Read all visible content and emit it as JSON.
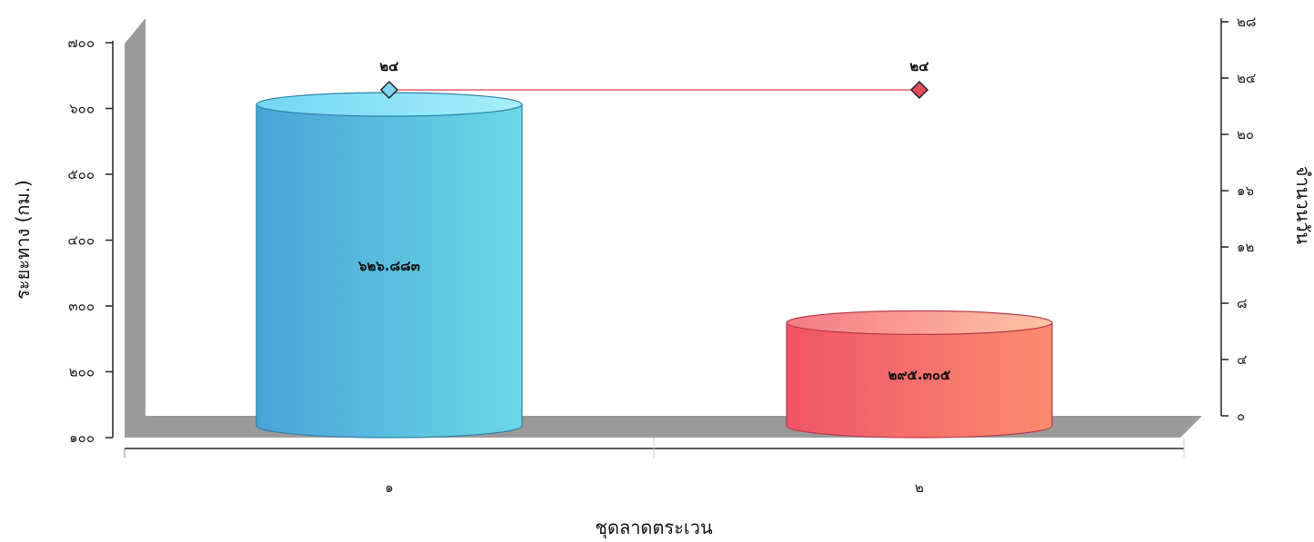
{
  "chart_data": {
    "type": "bar",
    "categories": [
      "๑",
      "๒"
    ],
    "xlabel": "ชุดลาดตระเวน",
    "ylabel": "ระยะทาง (กม.)",
    "y2label": "จำนวนวัน",
    "ylim": [
      100,
      700
    ],
    "y_ticks": [
      "๑๐๐",
      "๒๐๐",
      "๓๐๐",
      "๔๐๐",
      "๕๐๐",
      "๖๐๐",
      "๗๐๐"
    ],
    "y2lim": [
      0,
      28
    ],
    "y2_ticks": [
      "๐",
      "๔",
      "๘",
      "๑๒",
      "๑๖",
      "๒๐",
      "๒๔",
      "๒๘"
    ],
    "series": [
      {
        "kind": "bar",
        "values": [
          626.883,
          295.305
        ],
        "value_labels": [
          "๖๒๖.๘๘๓",
          "๒๙๕.๓๐๕"
        ],
        "colors": [
          "#4fa8dc",
          "#f0566a"
        ]
      },
      {
        "kind": "line",
        "axis": "right",
        "values": [
          24,
          24
        ],
        "value_labels": [
          "๒๔",
          "๒๔"
        ],
        "color": "#e0404f"
      }
    ]
  }
}
